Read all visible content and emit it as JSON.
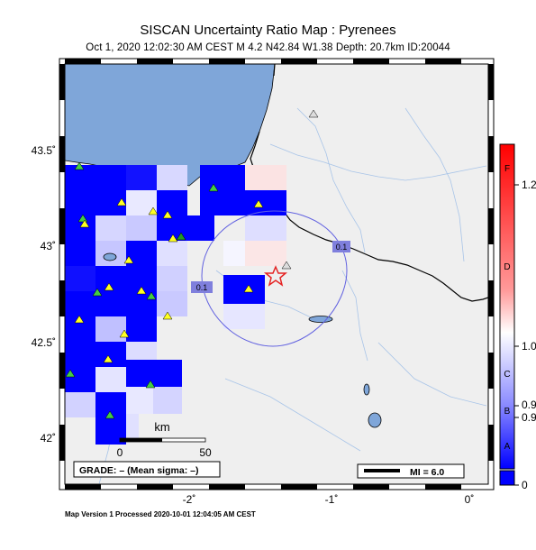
{
  "title": "SISCAN Uncertainty Ratio Map : Pyrenees",
  "subtitle": "Oct  1, 2020 12:02:30 AM CEST   M 4.2   N42.84 W1.38   Depth: 20.7km   ID:20044",
  "footer": "Map Version 1 Processed 2020-10-01 12:04:05 AM CEST",
  "lat_labels": [
    "43.5˚",
    "43˚",
    "42.5˚",
    "42˚"
  ],
  "lon_labels": [
    "-2˚",
    "-1˚",
    "0˚"
  ],
  "scalebar": {
    "unit": "km",
    "tick0": "0",
    "tick1": "50"
  },
  "grade_box": "GRADE: – (Mean sigma: –)",
  "mi_legend": "MI = 6.0",
  "contour_labels": [
    "0.1",
    "0.1"
  ],
  "colorbar": {
    "letters": [
      "F",
      "D",
      "C",
      "B",
      "A"
    ],
    "values": [
      "1.2",
      "1.0",
      "0.9",
      "0.9",
      "0"
    ]
  },
  "colors": {
    "sea": "#7fa6d9",
    "land": "#efefef",
    "high_ratio": "#ff0000",
    "low_ratio": "#0000ff",
    "epicenter": "#e52222"
  }
}
